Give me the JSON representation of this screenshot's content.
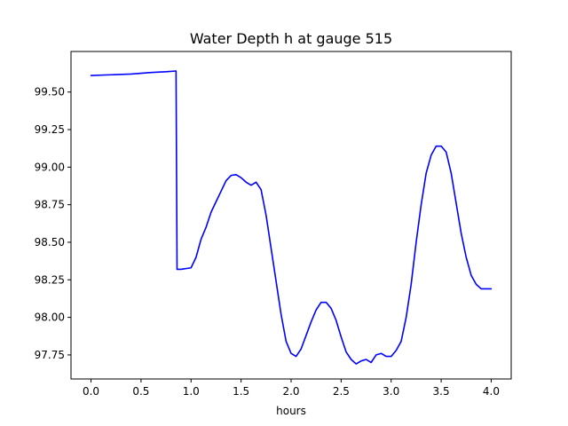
{
  "chart_data": {
    "type": "line",
    "title": "Water Depth h at gauge 515",
    "xlabel": "hours",
    "ylabel": "",
    "xlim": [
      -0.2,
      4.2
    ],
    "ylim": [
      97.59,
      99.77
    ],
    "grid": false,
    "x_ticks": [
      0.0,
      0.5,
      1.0,
      1.5,
      2.0,
      2.5,
      3.0,
      3.5,
      4.0
    ],
    "x_tick_labels": [
      "0.0",
      "0.5",
      "1.0",
      "1.5",
      "2.0",
      "2.5",
      "3.0",
      "3.5",
      "4.0"
    ],
    "y_ticks": [
      97.75,
      98.0,
      98.25,
      98.5,
      98.75,
      99.0,
      99.25,
      99.5
    ],
    "y_tick_labels": [
      "97.75",
      "98.00",
      "98.25",
      "98.50",
      "98.75",
      "99.00",
      "99.25",
      "99.50"
    ],
    "series": [
      {
        "color": "#0000ff",
        "x": [
          0.0,
          0.2,
          0.4,
          0.6,
          0.75,
          0.85,
          0.86,
          0.9,
          1.0,
          1.05,
          1.1,
          1.15,
          1.2,
          1.25,
          1.3,
          1.35,
          1.4,
          1.45,
          1.5,
          1.55,
          1.6,
          1.65,
          1.7,
          1.75,
          1.8,
          1.85,
          1.9,
          1.95,
          2.0,
          2.05,
          2.1,
          2.15,
          2.2,
          2.25,
          2.3,
          2.35,
          2.4,
          2.45,
          2.5,
          2.55,
          2.6,
          2.65,
          2.7,
          2.75,
          2.8,
          2.85,
          2.9,
          2.95,
          3.0,
          3.05,
          3.1,
          3.15,
          3.2,
          3.25,
          3.3,
          3.35,
          3.4,
          3.45,
          3.5,
          3.55,
          3.6,
          3.65,
          3.7,
          3.75,
          3.8,
          3.85,
          3.9,
          3.95,
          4.0
        ],
        "y": [
          99.61,
          99.615,
          99.62,
          99.63,
          99.635,
          99.64,
          98.32,
          98.32,
          98.33,
          98.4,
          98.52,
          98.6,
          98.7,
          98.77,
          98.84,
          98.91,
          98.945,
          98.95,
          98.93,
          98.9,
          98.88,
          98.9,
          98.85,
          98.68,
          98.46,
          98.24,
          98.02,
          97.84,
          97.76,
          97.74,
          97.79,
          97.88,
          97.97,
          98.05,
          98.1,
          98.1,
          98.06,
          97.98,
          97.87,
          97.77,
          97.72,
          97.69,
          97.71,
          97.72,
          97.7,
          97.75,
          97.76,
          97.74,
          97.74,
          97.78,
          97.84,
          98.0,
          98.22,
          98.5,
          98.75,
          98.96,
          99.08,
          99.14,
          99.14,
          99.1,
          98.96,
          98.76,
          98.56,
          98.4,
          98.28,
          98.22,
          98.19,
          98.19,
          98.19
        ]
      }
    ]
  }
}
